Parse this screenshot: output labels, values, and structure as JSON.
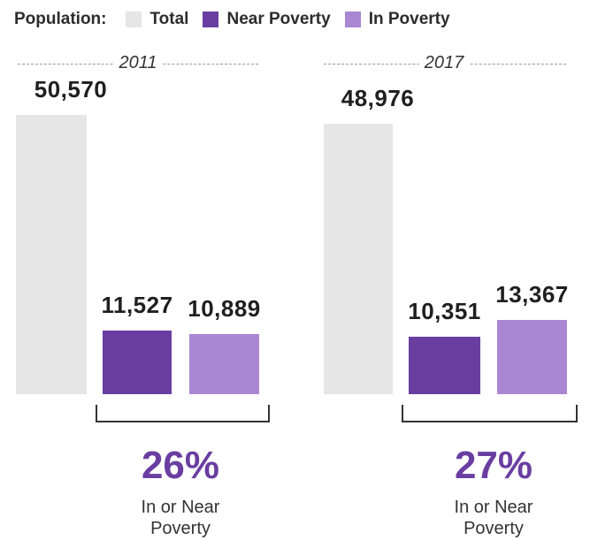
{
  "legend": {
    "title": "Population:",
    "items": [
      {
        "label": "Total",
        "color": "#e6e6e6"
      },
      {
        "label": "Near Poverty",
        "color": "#6a3ea1"
      },
      {
        "label": "In Poverty",
        "color": "#a987d3"
      }
    ]
  },
  "chart_data": {
    "type": "bar",
    "categories": [
      "2011",
      "2017"
    ],
    "series": [
      {
        "name": "Total",
        "values": [
          50570,
          48976
        ],
        "color": "#e6e6e6"
      },
      {
        "name": "Near Poverty",
        "values": [
          11527,
          10351
        ],
        "color": "#6a3ea1"
      },
      {
        "name": "In Poverty",
        "values": [
          10889,
          13367
        ],
        "color": "#a987d3"
      }
    ],
    "value_labels": [
      [
        "50,570",
        "11,527",
        "10,889"
      ],
      [
        "48,976",
        "10,351",
        "13,367"
      ]
    ],
    "summary": [
      {
        "percent": "26%",
        "caption_line1": "In or Near",
        "caption_line2": "Poverty"
      },
      {
        "percent": "27%",
        "caption_line1": "In or Near",
        "caption_line2": "Poverty"
      }
    ],
    "accent_color": "#6a3ea1",
    "ylim": [
      0,
      50570
    ],
    "grid": false,
    "legend_position": "top"
  }
}
